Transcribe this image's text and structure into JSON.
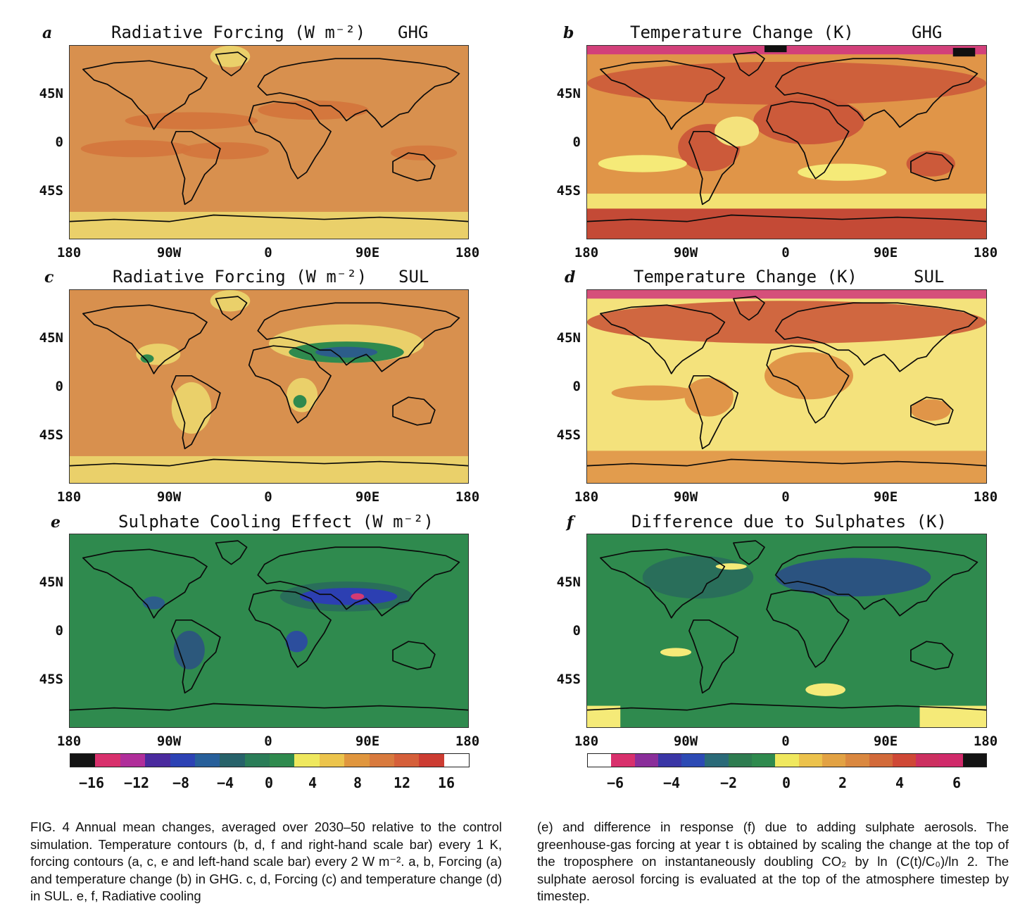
{
  "panels": [
    {
      "id": "a",
      "label": "a",
      "title": "Radiative Forcing (W m⁻²)",
      "tag": "GHG",
      "type": "forcing-ghg"
    },
    {
      "id": "b",
      "label": "b",
      "title": "Temperature Change (K)",
      "tag": "GHG",
      "type": "temp-ghg"
    },
    {
      "id": "c",
      "label": "c",
      "title": "Radiative Forcing (W m⁻²)",
      "tag": "SUL",
      "type": "forcing-sul"
    },
    {
      "id": "d",
      "label": "d",
      "title": "Temperature Change (K)",
      "tag": "SUL",
      "type": "temp-sul"
    },
    {
      "id": "e",
      "label": "e",
      "title": "Sulphate Cooling Effect (W m⁻²)",
      "tag": "",
      "type": "cooling"
    },
    {
      "id": "f",
      "label": "f",
      "title": "Difference due to Sulphates (K)",
      "tag": "",
      "type": "diff"
    }
  ],
  "lat_labels": [
    "45N",
    "0",
    "45S"
  ],
  "lon_labels": [
    "180",
    "90W",
    "0",
    "90E",
    "180"
  ],
  "left_scale": {
    "ticks": [
      "−16",
      "−12",
      "−8",
      "−4",
      "0",
      "4",
      "8",
      "12",
      "16"
    ],
    "colors": [
      "#141414",
      "#d8306c",
      "#b02e9a",
      "#4a2a9e",
      "#2c42b4",
      "#275f9a",
      "#27626a",
      "#2a7d58",
      "#2f8a4e",
      "#efe85e",
      "#ecc44c",
      "#e0963e",
      "#d87a3e",
      "#d55f3a",
      "#cc3c32",
      "#ffffff"
    ]
  },
  "right_scale": {
    "ticks": [
      "−6",
      "−4",
      "−2",
      "0",
      "2",
      "4",
      "6"
    ],
    "colors": [
      "#ffffff",
      "#d8306c",
      "#8a2e9a",
      "#3a36a6",
      "#2c4ab4",
      "#2a6a78",
      "#2e7c50",
      "#2f8a4e",
      "#f0e85e",
      "#ecc24c",
      "#e2a244",
      "#da8840",
      "#d26a3a",
      "#cf4836",
      "#cc3060",
      "#d02a6a",
      "#141414"
    ]
  },
  "colors": {
    "forcing_bg": "#d8904e",
    "forcing_high": "#d4743c",
    "forcing_low": "#ead06a",
    "forcing_yellow": "#f2ec80",
    "temp_warm": "#e09548",
    "temp_hot": "#cc5a3a",
    "temp_hotter": "#c24636",
    "temp_yellow": "#f5ea78",
    "temp_pale": "#f4e27c",
    "temp_pink": "#d2407a",
    "temp_black": "#101010",
    "green": "#2f8a4e",
    "green_dark": "#296e5a",
    "blue": "#2c3fb2",
    "blue_dark": "#2a2fa2",
    "pink": "#d33a72",
    "coast": "#0a0a0a"
  },
  "caption": {
    "left": "FIG. 4 Annual mean changes, averaged over 2030–50 relative to the control simulation. Temperature contours (b, d, f and right-hand scale bar) every 1 K, forcing contours (a, c, e and left-hand scale bar) every 2 W m⁻². a, b, Forcing (a) and temperature change (b) in GHG. c, d, Forcing (c) and temperature change (d) in SUL. e, f, Radiative cooling",
    "right": "(e) and difference in response (f) due to adding sulphate aerosols. The greenhouse-gas forcing at year t is obtained by scaling the change at the top of the troposphere on instantaneously doubling CO₂ by ln (C(t)/C₀)/ln 2. The sulphate aerosol forcing is evaluated at the top of the atmosphere timestep by timestep."
  }
}
